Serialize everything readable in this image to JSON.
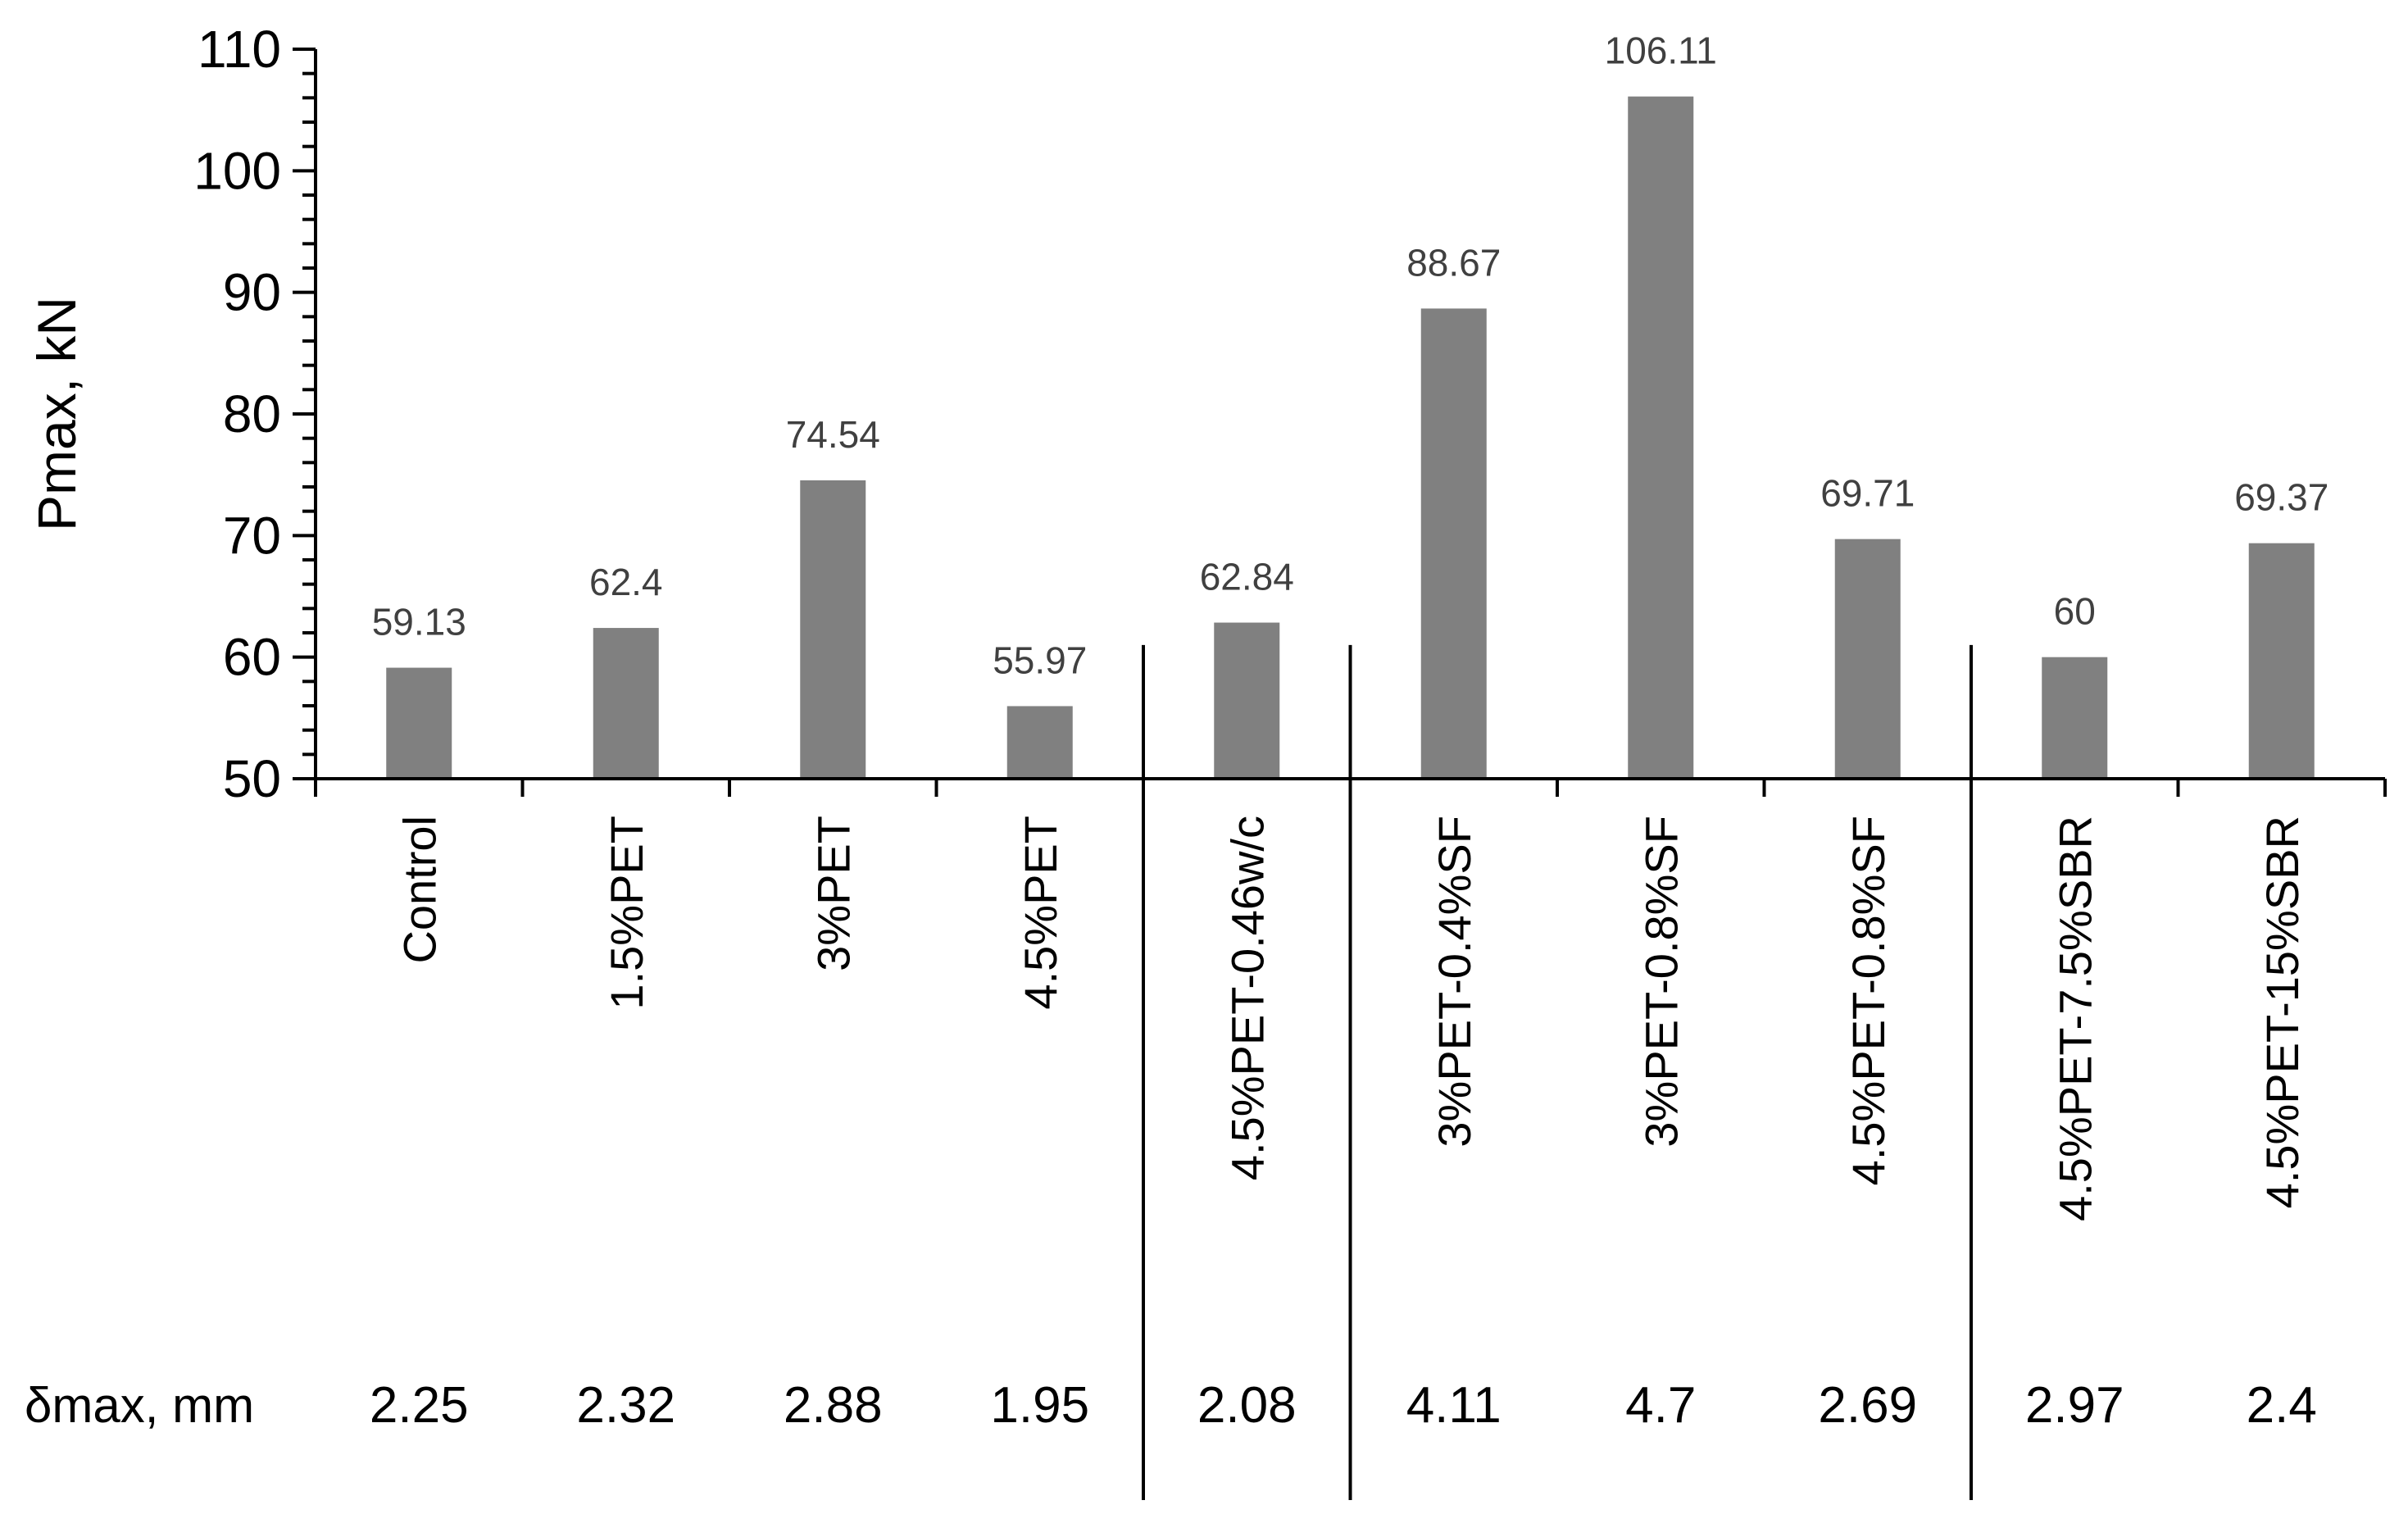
{
  "chart_data": {
    "type": "bar",
    "ylabel": "Pmax, kN",
    "ylim": [
      50,
      110
    ],
    "yticks": [
      50,
      60,
      70,
      80,
      90,
      100,
      110
    ],
    "categories": [
      "Control",
      "1.5%PET",
      "3%PET",
      "4.5%PET",
      "4.5%PET-0.46w/c",
      "3%PET-0.4%SF",
      "3%PET-0.8%SF",
      "4.5%PET-0.8%SF",
      "4.5%PET-7.5%SBR",
      "4.5%PET-15%SBR"
    ],
    "values": [
      59.13,
      62.4,
      74.54,
      55.97,
      62.84,
      88.67,
      106.11,
      69.71,
      60,
      69.37
    ],
    "data_labels": [
      "59.13",
      "62.4",
      "74.54",
      "55.97",
      "62.84",
      "88.67",
      "106.11",
      "69.71",
      "60",
      "69.37"
    ],
    "delta_max": {
      "label": "δmax, mm",
      "values": [
        "2.25",
        "2.32",
        "2.88",
        "1.95",
        "2.08",
        "4.11",
        "4.7",
        "2.69",
        "2.97",
        "2.4"
      ]
    },
    "group_separators_after": [
      3,
      4,
      7
    ],
    "grid": false,
    "bar_color": "#808080"
  }
}
